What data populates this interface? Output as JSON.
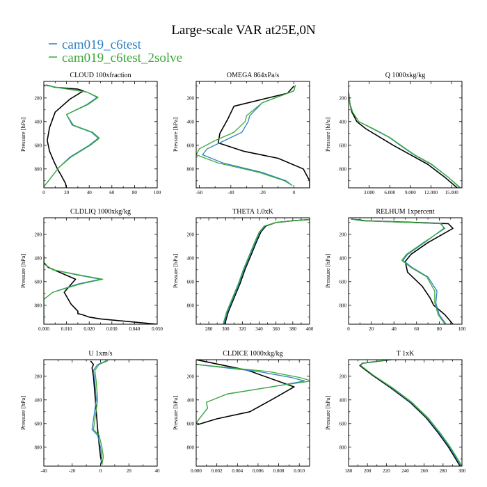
{
  "title": "Large-scale VAR at25E,0N",
  "legend": [
    {
      "label": "cam019_c6test",
      "color": "#2f7fc1"
    },
    {
      "label": "cam019_c6test_2solve",
      "color": "#3aaa35"
    }
  ],
  "colors": {
    "obs": "#000000",
    "c6test": "#2f7fc1",
    "solve": "#3aaa35"
  },
  "chart_data": [
    {
      "type": "line",
      "title": "CLOUD 100xfraction",
      "ylabel": "Pressure [hPa]",
      "xlim": [
        0,
        100
      ],
      "ylim": [
        960,
        60
      ],
      "xticks": [
        0,
        10,
        20,
        30,
        40,
        50,
        60,
        70,
        80,
        90,
        100
      ],
      "xtick_labels": [
        "0",
        "",
        "20",
        "",
        "40",
        "",
        "60",
        "",
        "80",
        "",
        "100"
      ],
      "yticks": [
        200,
        400,
        600,
        800
      ],
      "series": [
        {
          "key": "black",
          "x": [
            2,
            10,
            30,
            35,
            23,
            10,
            5,
            3,
            5,
            9,
            12,
            15,
            19,
            20
          ],
          "y": [
            90,
            110,
            125,
            140,
            210,
            320,
            450,
            560,
            650,
            740,
            800,
            850,
            920,
            960
          ]
        },
        {
          "key": "blue",
          "x": [
            0,
            14,
            38,
            47,
            38,
            20,
            25,
            42,
            48,
            40,
            23,
            13,
            5,
            0
          ],
          "y": [
            90,
            115,
            150,
            195,
            255,
            340,
            430,
            490,
            540,
            600,
            700,
            790,
            890,
            950
          ]
        },
        {
          "key": "green",
          "x": [
            0,
            14,
            38,
            48,
            39,
            20,
            26,
            43,
            49,
            41,
            24,
            13,
            5,
            0
          ],
          "y": [
            90,
            115,
            150,
            195,
            255,
            340,
            430,
            490,
            540,
            600,
            700,
            790,
            890,
            950
          ]
        }
      ]
    },
    {
      "type": "line",
      "title": "OMEGA 864xPa/s",
      "ylabel": "Pressure [hPa]",
      "xlim": [
        -62,
        10
      ],
      "ylim": [
        960,
        60
      ],
      "xticks": [
        -60,
        -50,
        -40,
        -30,
        -20,
        -10,
        0,
        10
      ],
      "xtick_labels": [
        "-60",
        "",
        "-40",
        "",
        "-20",
        "",
        "0",
        ""
      ],
      "yticks": [
        200,
        400,
        600,
        800
      ],
      "series": [
        {
          "key": "black",
          "x": [
            0,
            -4,
            -38,
            -42,
            -47,
            -48,
            -32,
            -10,
            6,
            10,
            10
          ],
          "y": [
            100,
            160,
            270,
            380,
            500,
            580,
            650,
            710,
            800,
            900,
            960
          ]
        },
        {
          "key": "blue",
          "x": [
            1,
            0,
            -20,
            -28,
            -29,
            -33,
            -44,
            -55,
            -58,
            -45,
            -20,
            -5,
            -1
          ],
          "y": [
            90,
            140,
            240,
            350,
            400,
            490,
            560,
            630,
            680,
            750,
            830,
            900,
            940
          ]
        },
        {
          "key": "green",
          "x": [
            1,
            0,
            -20,
            -30,
            -31,
            -38,
            -50,
            -60,
            -62,
            -48,
            -22,
            -6,
            -1
          ],
          "y": [
            90,
            140,
            240,
            350,
            400,
            490,
            560,
            630,
            680,
            750,
            830,
            900,
            940
          ]
        }
      ]
    },
    {
      "type": "line",
      "title": "Q 1000xkg/kg",
      "ylabel": "Pressure [hPa]",
      "xlim": [
        0,
        16.5
      ],
      "ylim": [
        960,
        60
      ],
      "xticks": [
        3,
        6,
        9,
        12,
        15
      ],
      "xtick_labels": [
        "3.000",
        "6.000",
        "9.000",
        "12.000",
        "15.000"
      ],
      "yticks": [
        200,
        400,
        600,
        800
      ],
      "series": [
        {
          "key": "black",
          "x": [
            0,
            0.2,
            0.5,
            1.2,
            2.5,
            4.5,
            6.5,
            9,
            11.5,
            14,
            15.8
          ],
          "y": [
            150,
            250,
            320,
            400,
            460,
            530,
            600,
            680,
            760,
            870,
            960
          ]
        },
        {
          "key": "blue",
          "x": [
            0,
            0.2,
            0.6,
            1.5,
            3.5,
            5.8,
            7.5,
            9.5,
            12,
            14.5,
            16.2
          ],
          "y": [
            150,
            250,
            320,
            400,
            460,
            530,
            600,
            680,
            760,
            870,
            960
          ]
        },
        {
          "key": "green",
          "x": [
            0,
            0.2,
            0.6,
            1.5,
            3.6,
            5.9,
            7.6,
            9.6,
            12.1,
            14.5,
            16.3
          ],
          "y": [
            150,
            250,
            320,
            400,
            460,
            530,
            600,
            680,
            760,
            870,
            960
          ]
        }
      ]
    },
    {
      "type": "line",
      "title": "CLDLIQ 1000xkg/kg",
      "ylabel": "Pressure [hPa]",
      "xlim": [
        0,
        0.05
      ],
      "ylim": [
        960,
        60
      ],
      "xticks": [
        0,
        0.005,
        0.01,
        0.015,
        0.02,
        0.025,
        0.03,
        0.035,
        0.04,
        0.045,
        0.05
      ],
      "xtick_labels": [
        "0.000",
        "",
        "0.010",
        "",
        "0.020",
        "",
        "0.030",
        "",
        "0.040",
        "",
        "0.050"
      ],
      "yticks": [
        200,
        400,
        600,
        800
      ],
      "series": [
        {
          "key": "black",
          "x": [
            0,
            0,
            0.002,
            0.008,
            0.014,
            0.009,
            0.012,
            0.015,
            0.015,
            0.017,
            0.02,
            0.025,
            0.05
          ],
          "y": [
            380,
            440,
            480,
            530,
            580,
            690,
            790,
            850,
            870,
            880,
            900,
            915,
            960
          ]
        },
        {
          "key": "blue",
          "x": [
            0,
            0,
            0.004,
            0.015,
            0.025,
            0.015,
            0.004,
            0,
            0
          ],
          "y": [
            400,
            450,
            500,
            545,
            580,
            620,
            690,
            750,
            960
          ]
        },
        {
          "key": "green",
          "x": [
            0,
            0,
            0.004,
            0.016,
            0.026,
            0.016,
            0.004,
            0,
            0
          ],
          "y": [
            400,
            450,
            500,
            545,
            580,
            620,
            690,
            750,
            960
          ]
        }
      ]
    },
    {
      "type": "line",
      "title": "THETA 1.0xK",
      "ylabel": "Pressure [hPa]",
      "xlim": [
        265,
        400
      ],
      "ylim": [
        960,
        60
      ],
      "xticks": [
        270,
        280,
        290,
        300,
        310,
        320,
        330,
        340,
        350,
        360,
        370,
        380,
        390,
        400
      ],
      "xtick_labels": [
        "",
        "280",
        "",
        "300",
        "",
        "320",
        "",
        "340",
        "",
        "360",
        "",
        "380",
        "",
        "400"
      ],
      "yticks": [
        200,
        400,
        600,
        800
      ],
      "series": [
        {
          "key": "black",
          "x": [
            299,
            303,
            310,
            317,
            323,
            330,
            337,
            342,
            348,
            360,
            380,
            400
          ],
          "y": [
            960,
            860,
            740,
            620,
            500,
            380,
            260,
            180,
            130,
            100,
            85,
            75
          ]
        },
        {
          "key": "blue",
          "x": [
            298,
            302,
            309,
            316,
            322,
            329,
            336,
            341,
            347,
            360,
            380,
            400
          ],
          "y": [
            960,
            860,
            740,
            620,
            500,
            380,
            260,
            180,
            130,
            100,
            85,
            75
          ]
        },
        {
          "key": "green",
          "x": [
            297,
            301,
            308,
            315,
            321,
            328,
            335,
            340,
            346,
            360,
            380,
            400
          ],
          "y": [
            960,
            860,
            740,
            620,
            500,
            380,
            260,
            180,
            130,
            100,
            85,
            75
          ]
        }
      ]
    },
    {
      "type": "line",
      "title": "RELHUM 1xpercent",
      "ylabel": "Pressure [hPa]",
      "xlim": [
        0,
        100
      ],
      "ylim": [
        960,
        60
      ],
      "xticks": [
        0,
        10,
        20,
        30,
        40,
        50,
        60,
        70,
        80,
        90,
        100
      ],
      "xtick_labels": [
        "0",
        "",
        "20",
        "",
        "40",
        "",
        "60",
        "",
        "80",
        "",
        "100"
      ],
      "yticks": [
        200,
        400,
        600,
        800
      ],
      "series": [
        {
          "key": "black",
          "x": [
            2,
            15,
            60,
            88,
            92,
            70,
            55,
            50,
            52,
            65,
            72,
            75,
            85,
            92
          ],
          "y": [
            70,
            85,
            100,
            110,
            150,
            270,
            370,
            430,
            520,
            640,
            740,
            800,
            880,
            960
          ]
        },
        {
          "key": "blue",
          "x": [
            2,
            12,
            55,
            82,
            84,
            67,
            52,
            48,
            56,
            70,
            78,
            77,
            80,
            86
          ],
          "y": [
            70,
            85,
            100,
            110,
            150,
            270,
            370,
            420,
            480,
            560,
            680,
            780,
            880,
            960
          ]
        },
        {
          "key": "green",
          "x": [
            2,
            12,
            55,
            81,
            85,
            66,
            51,
            47,
            55,
            69,
            76,
            76,
            79,
            85
          ],
          "y": [
            70,
            85,
            100,
            110,
            150,
            270,
            370,
            420,
            480,
            560,
            680,
            780,
            880,
            960
          ]
        }
      ]
    },
    {
      "type": "line",
      "title": "U 1xm/s",
      "ylabel": "Pressure [hPa]",
      "xlim": [
        -40,
        40
      ],
      "ylim": [
        960,
        60
      ],
      "xticks": [
        -40,
        -30,
        -20,
        -10,
        0,
        10,
        20,
        30,
        40
      ],
      "xtick_labels": [
        "-40",
        "",
        "-20",
        "",
        "0",
        "",
        "20",
        "",
        "40"
      ],
      "yticks": [
        200,
        400,
        600,
        800
      ],
      "series": [
        {
          "key": "black",
          "x": [
            -7,
            -5,
            -6,
            -5,
            -4,
            -3,
            -2,
            -1,
            0,
            1
          ],
          "y": [
            70,
            100,
            130,
            200,
            350,
            500,
            650,
            780,
            880,
            940
          ]
        },
        {
          "key": "blue",
          "x": [
            3,
            4,
            -2,
            -5,
            -4,
            -3,
            -6,
            -2,
            0,
            1,
            0
          ],
          "y": [
            50,
            70,
            100,
            150,
            250,
            400,
            650,
            700,
            800,
            880,
            950
          ]
        },
        {
          "key": "green",
          "x": [
            4,
            5,
            -1,
            -4,
            -3,
            -2,
            -5,
            -1,
            1,
            2,
            1
          ],
          "y": [
            50,
            70,
            100,
            150,
            250,
            400,
            650,
            700,
            800,
            880,
            950
          ]
        }
      ]
    },
    {
      "type": "line",
      "title": "CLDICE 1000xkg/kg",
      "ylabel": "Pressure [hPa]",
      "xlim": [
        0,
        0.011
      ],
      "ylim": [
        960,
        60
      ],
      "xticks": [
        0,
        0.001,
        0.002,
        0.003,
        0.004,
        0.005,
        0.006,
        0.007,
        0.008,
        0.009,
        0.01,
        0.011
      ],
      "xtick_labels": [
        "0.000",
        "",
        "0.002",
        "",
        "0.004",
        "",
        "0.006",
        "",
        "0.008",
        "",
        "0.010",
        ""
      ],
      "yticks": [
        200,
        400,
        600,
        800
      ],
      "series": [
        {
          "key": "black",
          "x": [
            0,
            0.005,
            0.0095,
            0.0075,
            0.0052,
            0.002,
            0.0001
          ],
          "y": [
            60,
            150,
            290,
            390,
            500,
            560,
            610
          ]
        },
        {
          "key": "blue",
          "x": [
            0,
            0.006,
            0.0092,
            0.0105,
            0.008,
            0.003,
            0.001,
            0.0011,
            0.0003,
            0
          ],
          "y": [
            100,
            160,
            210,
            240,
            280,
            350,
            420,
            470,
            560,
            600
          ]
        },
        {
          "key": "green",
          "x": [
            0,
            0.007,
            0.01,
            0.0112,
            0.008,
            0.003,
            0.001,
            0.0011,
            0.0003,
            0
          ],
          "y": [
            100,
            160,
            210,
            240,
            280,
            350,
            420,
            470,
            560,
            600
          ]
        }
      ]
    },
    {
      "type": "line",
      "title": "T 1xK",
      "ylabel": "Pressure [hPa]",
      "xlim": [
        180,
        300
      ],
      "ylim": [
        960,
        60
      ],
      "xticks": [
        180,
        190,
        200,
        210,
        220,
        230,
        240,
        250,
        260,
        270,
        280,
        290,
        300
      ],
      "xtick_labels": [
        "180",
        "",
        "200",
        "",
        "220",
        "",
        "240",
        "",
        "260",
        "",
        "280",
        "",
        "300"
      ],
      "yticks": [
        200,
        400,
        600,
        800
      ],
      "series": [
        {
          "key": "black",
          "x": [
            225,
            210,
            195,
            192,
            205,
            225,
            245,
            262,
            275,
            285,
            292,
            298
          ],
          "y": [
            60,
            75,
            90,
            110,
            190,
            300,
            420,
            550,
            680,
            790,
            880,
            960
          ]
        },
        {
          "key": "blue",
          "x": [
            224,
            209,
            195,
            193,
            206,
            226,
            246,
            263,
            276,
            286,
            293,
            299
          ],
          "y": [
            60,
            75,
            90,
            110,
            190,
            300,
            420,
            550,
            680,
            790,
            880,
            960
          ]
        },
        {
          "key": "green",
          "x": [
            223,
            208,
            194,
            193,
            206,
            227,
            247,
            264,
            277,
            287,
            294,
            300
          ],
          "y": [
            60,
            75,
            90,
            110,
            190,
            300,
            420,
            550,
            680,
            790,
            880,
            960
          ]
        }
      ]
    }
  ]
}
